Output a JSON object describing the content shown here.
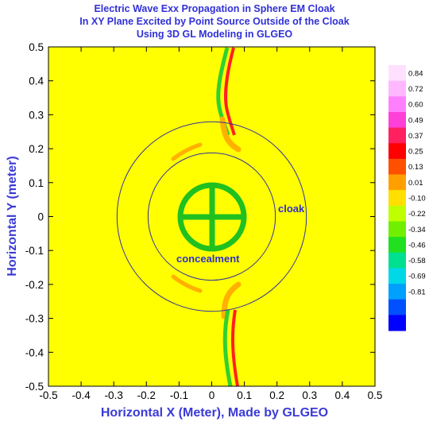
{
  "chart_data": {
    "type": "heatmap",
    "title": [
      "Electric Wave Exx Propagation in Sphere EM Cloak",
      "In XY Plane Excited by Point Source Outside of the Cloak",
      "Using 3D GL Modeling in GLGEO"
    ],
    "xlabel": "Horizontal X (Meter), Made by GLGEO",
    "ylabel": "Horizontal Y (meter)",
    "xlim": [
      -0.5,
      0.5
    ],
    "ylim": [
      -0.5,
      0.5
    ],
    "xticks": [
      "-0.5",
      "-0.4",
      "-0.3",
      "-0.2",
      "-0.1",
      "0",
      "0.1",
      "0.2",
      "0.3",
      "0.4",
      "0.5"
    ],
    "yticks": [
      "0.5",
      "0.4",
      "0.3",
      "0.2",
      "0.1",
      "0",
      "-0.1",
      "-0.2",
      "-0.3",
      "-0.4",
      "-0.5"
    ],
    "background_value": 0.01,
    "colorbar": {
      "labels": [
        "0.84",
        "0.72",
        "0.60",
        "0.49",
        "0.37",
        "0.25",
        "0.13",
        "0.01",
        "-0.10",
        "-0.22",
        "-0.34",
        "-0.46",
        "-0.58",
        "-0.69",
        "-0.81"
      ],
      "colors": [
        "#ffe0ff",
        "#ffb8ff",
        "#ff80ff",
        "#ff40d8",
        "#ff2060",
        "#ff0000",
        "#ff5000",
        "#ffa000",
        "#ffe000",
        "#c0ff00",
        "#70f000",
        "#20e020",
        "#00e090",
        "#00d8e8",
        "#00a0ff",
        "#0050ff",
        "#0000ff"
      ]
    },
    "circles": [
      {
        "name": "cloak",
        "radius": 0.29
      },
      {
        "name": "concealment",
        "radius": 0.195
      }
    ],
    "annotations": [
      "cloak",
      "concealment"
    ],
    "colors": {
      "background": "#ffff00",
      "circle_line": "#3030a0",
      "symbol": "#20c020",
      "wave_red": "#ff2020",
      "wave_green": "#30d030",
      "wave_orange": "#ffb000"
    }
  }
}
